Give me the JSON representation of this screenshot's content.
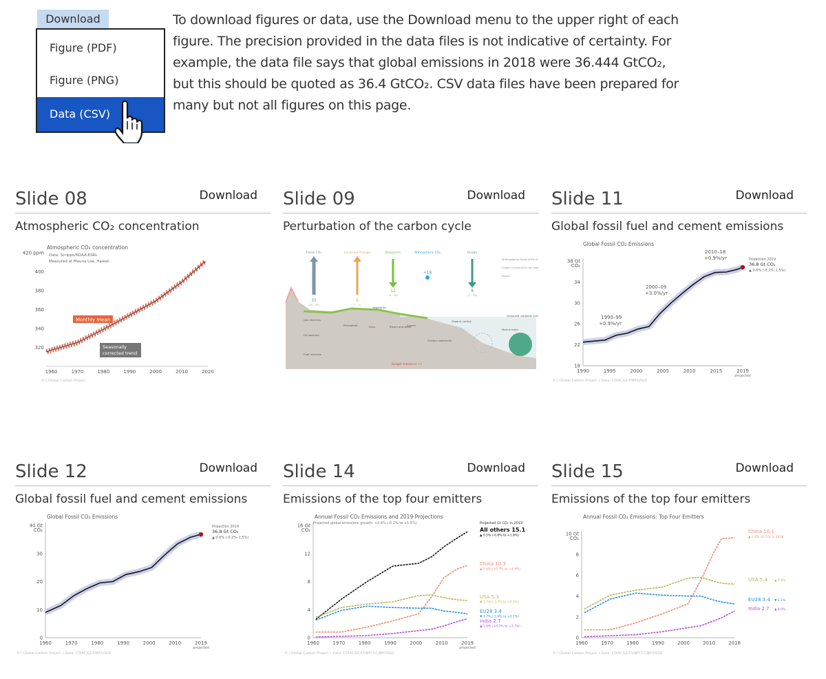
{
  "menu": {
    "header": "Download",
    "items": [
      "Figure (PDF)",
      "Figure (PNG)",
      "Data (CSV)"
    ],
    "selected": "Data (CSV)"
  },
  "intro": "To download figures or data, use the Download menu to the upper right of each figure. The precision provided in the data files is not indicative of certainty. For example, the data file says that global emissions in 2018 were 36.444 GtCO₂, but this should be quoted as 36.4 GtCO₂. CSV data files have been prepared for many but not all figures on this page.",
  "cards": [
    {
      "slide": "Slide 08",
      "download": "Download",
      "subtitle": "Atmospheric CO₂ concentration",
      "figure": {
        "title": "Atmospheric CO₂ concentration",
        "source_lines": [
          "Data: Scripps/NOAA-ESRL",
          "Measured at Mauna Loa, Hawaii"
        ],
        "labels": [
          "Monthly mean",
          "Seasonally corrected trend"
        ],
        "y_ticks": [
          "420 ppm",
          "400",
          "380",
          "360",
          "340",
          "320"
        ],
        "x_ticks": [
          "1960",
          "1970",
          "1980",
          "1990",
          "2000",
          "2010",
          "2020"
        ],
        "credit": "©ⓘGlobal Carbon Project"
      },
      "chart_data": {
        "type": "line",
        "title": "Atmospheric CO₂ concentration",
        "ylim": [
          310,
          420
        ],
        "xlim": [
          1958,
          2020
        ],
        "x": [
          1958,
          1960,
          1970,
          1980,
          1990,
          2000,
          2010,
          2019
        ],
        "series": [
          {
            "name": "Seasonally corrected trend",
            "values": [
              315,
              317,
              325,
              339,
              354,
              369,
              389,
              411
            ]
          }
        ]
      }
    },
    {
      "slide": "Slide 09",
      "download": "Download",
      "subtitle": "Perturbation of the carbon cycle",
      "figure": {
        "arrows": [
          {
            "label": "Fossil CO₂",
            "value": "35",
            "range": "(33 – 37)",
            "color": "#7e95a8"
          },
          {
            "label": "Land-use change",
            "value": "6",
            "range": "(3 – 9)",
            "color": "#e8a850"
          },
          {
            "label": "Biosphere",
            "value": "12",
            "range": "(8 – 16)",
            "color": "#7bbf3a"
          },
          {
            "label": "Atmospheric CO₂",
            "value": "+18",
            "range": "",
            "color": "#2aa7d8"
          },
          {
            "label": "Ocean",
            "value": "9",
            "range": "(7 – 11)",
            "color": "#3f9b82"
          }
        ],
        "legend": [
          "Anthropogenic fluxes 2009-2018 average GtCO₂ per year",
          "Carbon cycling GtCO₂ per year",
          "Stocks"
        ],
        "stocks": [
          "Gas reserves",
          "Oil reserves",
          "Coal reserves",
          "Permafrost",
          "Soils",
          "Vegetation",
          "Rivers and lakes",
          "Coasts",
          "Surface sediments",
          "Organic carbon",
          "Marine biota",
          "Dissolved inorganic carbon"
        ],
        "imbalance": "Budget imbalance +2"
      }
    },
    {
      "slide": "Slide 11",
      "download": "Download",
      "subtitle": "Global fossil fuel and cement emissions",
      "figure": {
        "title": "Global Fossil CO₂ Emissions",
        "y_label": "CO₂",
        "y_ticks": [
          "38 Gt",
          "34",
          "30",
          "26",
          "22",
          "18"
        ],
        "x_ticks": [
          "1990",
          "1995",
          "2000",
          "2005",
          "2010",
          "2015",
          "2019"
        ],
        "x_note": "projected",
        "annotations": [
          "1990–99",
          "+0.9%/yr",
          "2000–09",
          "+3.0%/yr",
          "2010–18",
          "+0.9%/yr"
        ],
        "projection": [
          "Projection 2019",
          "36.8 Gt CO₂",
          "▲ 0.6% (-0.2%–1.5%)"
        ],
        "credit": "©ⓘGlobal Carbon Project  •  Data: CDIAC/GCP/BP/USGS"
      },
      "chart_data": {
        "type": "line",
        "title": "Global Fossil CO₂ Emissions",
        "ylabel": "CO₂ (Gt)",
        "ylim": [
          18,
          38
        ],
        "xlim": [
          1990,
          2019
        ],
        "x": [
          1990,
          1992,
          1994,
          1996,
          1998,
          2000,
          2002,
          2004,
          2006,
          2008,
          2010,
          2012,
          2014,
          2016,
          2018,
          2019
        ],
        "series": [
          {
            "name": "Fossil CO₂",
            "values": [
              22.5,
              22.7,
              22.9,
              23.8,
              24.2,
              25.0,
              25.5,
              28.0,
              30.0,
              31.8,
              33.5,
              35.0,
              35.8,
              35.9,
              36.4,
              36.8
            ]
          }
        ]
      }
    },
    {
      "slide": "Slide 12",
      "download": "Download",
      "subtitle": "Global fossil fuel and cement emissions",
      "figure": {
        "title": "Global Fossil CO₂ Emissions",
        "y_label": "CO₂",
        "y_ticks": [
          "40 Gt",
          "30",
          "20",
          "10",
          "0"
        ],
        "x_ticks": [
          "1960",
          "1970",
          "1980",
          "1990",
          "2000",
          "2010",
          "2019"
        ],
        "x_note": "projected",
        "projection": [
          "Projection 2019",
          "36.8 Gt CO₂",
          "▲ 0.6% (-0.2%–1.5%)"
        ],
        "credit": "©ⓘGlobal Carbon Project  •  Data: CDIAC/GCP/BP/USGS"
      },
      "chart_data": {
        "type": "line",
        "title": "Global Fossil CO₂ Emissions",
        "ylabel": "CO₂ (Gt)",
        "ylim": [
          0,
          40
        ],
        "xlim": [
          1959,
          2019
        ],
        "x": [
          1959,
          1965,
          1970,
          1975,
          1980,
          1985,
          1990,
          1995,
          2000,
          2005,
          2010,
          2015,
          2019
        ],
        "series": [
          {
            "name": "Fossil CO₂",
            "values": [
              9.0,
              11.5,
              15.0,
              17.5,
              19.5,
              20.0,
              22.5,
              23.5,
              25.0,
              29.5,
              33.5,
              35.8,
              36.8
            ]
          }
        ]
      }
    },
    {
      "slide": "Slide 14",
      "download": "Download",
      "subtitle": "Emissions of the top four emitters",
      "figure": {
        "title": "Annual Fossil CO₂ Emissions and 2019 Projections",
        "subtitle": "Projected global emissions growth: +0.6% (-0.2% to +1.5%)",
        "y_label": "CO₂",
        "y_ticks": [
          "16 Gt",
          "12",
          "8",
          "4",
          "0"
        ],
        "x_ticks": [
          "1960",
          "1970",
          "1980",
          "1990",
          "2000",
          "2010",
          "2019"
        ],
        "x_note": "projected",
        "legend_head": "Projected Gt CO₂ in 2019",
        "legend": [
          {
            "label": "All others 15.1",
            "note": "▲ 0.5% (-0.8% to +1.8%)",
            "color": "#111"
          },
          {
            "label": "China 10.3",
            "note": "▲ 2.6% (+0.7% to +4.4%)",
            "color": "#f08a6c"
          },
          {
            "label": "USA 5.3",
            "note": "▼ 1.7% (-3.7% to +0.3%)",
            "color": "#b7b55a"
          },
          {
            "label": "EU28 3.4",
            "note": "▼ 1.7% (-3.4% to +0.1%)",
            "color": "#2a8fd8"
          },
          {
            "label": "India 2.7",
            "note": "▲ 1.8% (+0.7% to +3.7%)",
            "color": "#b54fd4"
          }
        ],
        "credit": "©ⓘGlobal Carbon Project  •  Data: CDIAC/GCP/UNFCCC/BP/USGS"
      },
      "chart_data": {
        "type": "line",
        "title": "Annual Fossil CO₂ Emissions and 2019 Projections",
        "ylabel": "CO₂ (Gt)",
        "ylim": [
          0,
          16
        ],
        "xlim": [
          1959,
          2019
        ],
        "x": [
          1960,
          1970,
          1980,
          1990,
          2000,
          2005,
          2010,
          2015,
          2019
        ],
        "series": [
          {
            "name": "All others",
            "values": [
              2.6,
              5.5,
              8.0,
              10.2,
              10.6,
              11.5,
              13.0,
              14.2,
              15.1
            ]
          },
          {
            "name": "China",
            "values": [
              0.8,
              0.8,
              1.5,
              2.4,
              3.4,
              5.8,
              8.6,
              9.8,
              10.3
            ]
          },
          {
            "name": "USA",
            "values": [
              2.9,
              4.3,
              4.8,
              5.1,
              6.0,
              6.1,
              5.7,
              5.4,
              5.3
            ]
          },
          {
            "name": "EU28",
            "values": [
              2.5,
              3.9,
              4.5,
              4.3,
              4.2,
              4.2,
              3.8,
              3.6,
              3.4
            ]
          },
          {
            "name": "India",
            "values": [
              0.1,
              0.2,
              0.3,
              0.6,
              1.0,
              1.2,
              1.7,
              2.3,
              2.7
            ]
          }
        ]
      }
    },
    {
      "slide": "Slide 15",
      "download": "Download",
      "subtitle": "Emissions of the top four emitters",
      "figure": {
        "title": "Annual Fossil CO₂ Emissions: Top Four Emitters",
        "y_label": "CO₂",
        "y_ticks": [
          "10 Gt",
          "8",
          "6",
          "4",
          "2",
          "0"
        ],
        "x_ticks": [
          "1960",
          "1970",
          "1980",
          "1990",
          "2000",
          "2010",
          "2018"
        ],
        "legend": [
          {
            "label": "China 10.1",
            "note": "▲ 2.3% Gt CO₂ in 2018",
            "color": "#f08a6c"
          },
          {
            "label": "USA 5.4",
            "note": "▲ 2.8%",
            "color": "#b7b55a"
          },
          {
            "label": "EU28 3.4",
            "note": "▼ 2.1%",
            "color": "#2a8fd8"
          },
          {
            "label": "India 2.7",
            "note": "▲ 8.0%",
            "color": "#b54fd4"
          }
        ],
        "credit": "©ⓘGlobal Carbon Project  •  Data: CDIAC/GCP/UNFCCC/BP/USGS"
      },
      "chart_data": {
        "type": "line",
        "title": "Annual Fossil CO₂ Emissions: Top Four Emitters",
        "ylabel": "CO₂ (Gt)",
        "ylim": [
          0,
          10.5
        ],
        "xlim": [
          1959,
          2018
        ],
        "x": [
          1960,
          1970,
          1980,
          1990,
          2000,
          2005,
          2010,
          2013,
          2018
        ],
        "series": [
          {
            "name": "China",
            "values": [
              0.8,
              0.8,
              1.5,
              2.4,
              3.4,
              5.8,
              8.6,
              10.0,
              10.1
            ]
          },
          {
            "name": "USA",
            "values": [
              2.9,
              4.3,
              4.8,
              5.1,
              6.0,
              6.1,
              5.7,
              5.5,
              5.4
            ]
          },
          {
            "name": "EU28",
            "values": [
              2.5,
              3.9,
              4.5,
              4.3,
              4.2,
              4.2,
              3.8,
              3.6,
              3.4
            ]
          },
          {
            "name": "India",
            "values": [
              0.1,
              0.2,
              0.3,
              0.6,
              1.0,
              1.2,
              1.7,
              2.0,
              2.7
            ]
          }
        ]
      }
    }
  ]
}
